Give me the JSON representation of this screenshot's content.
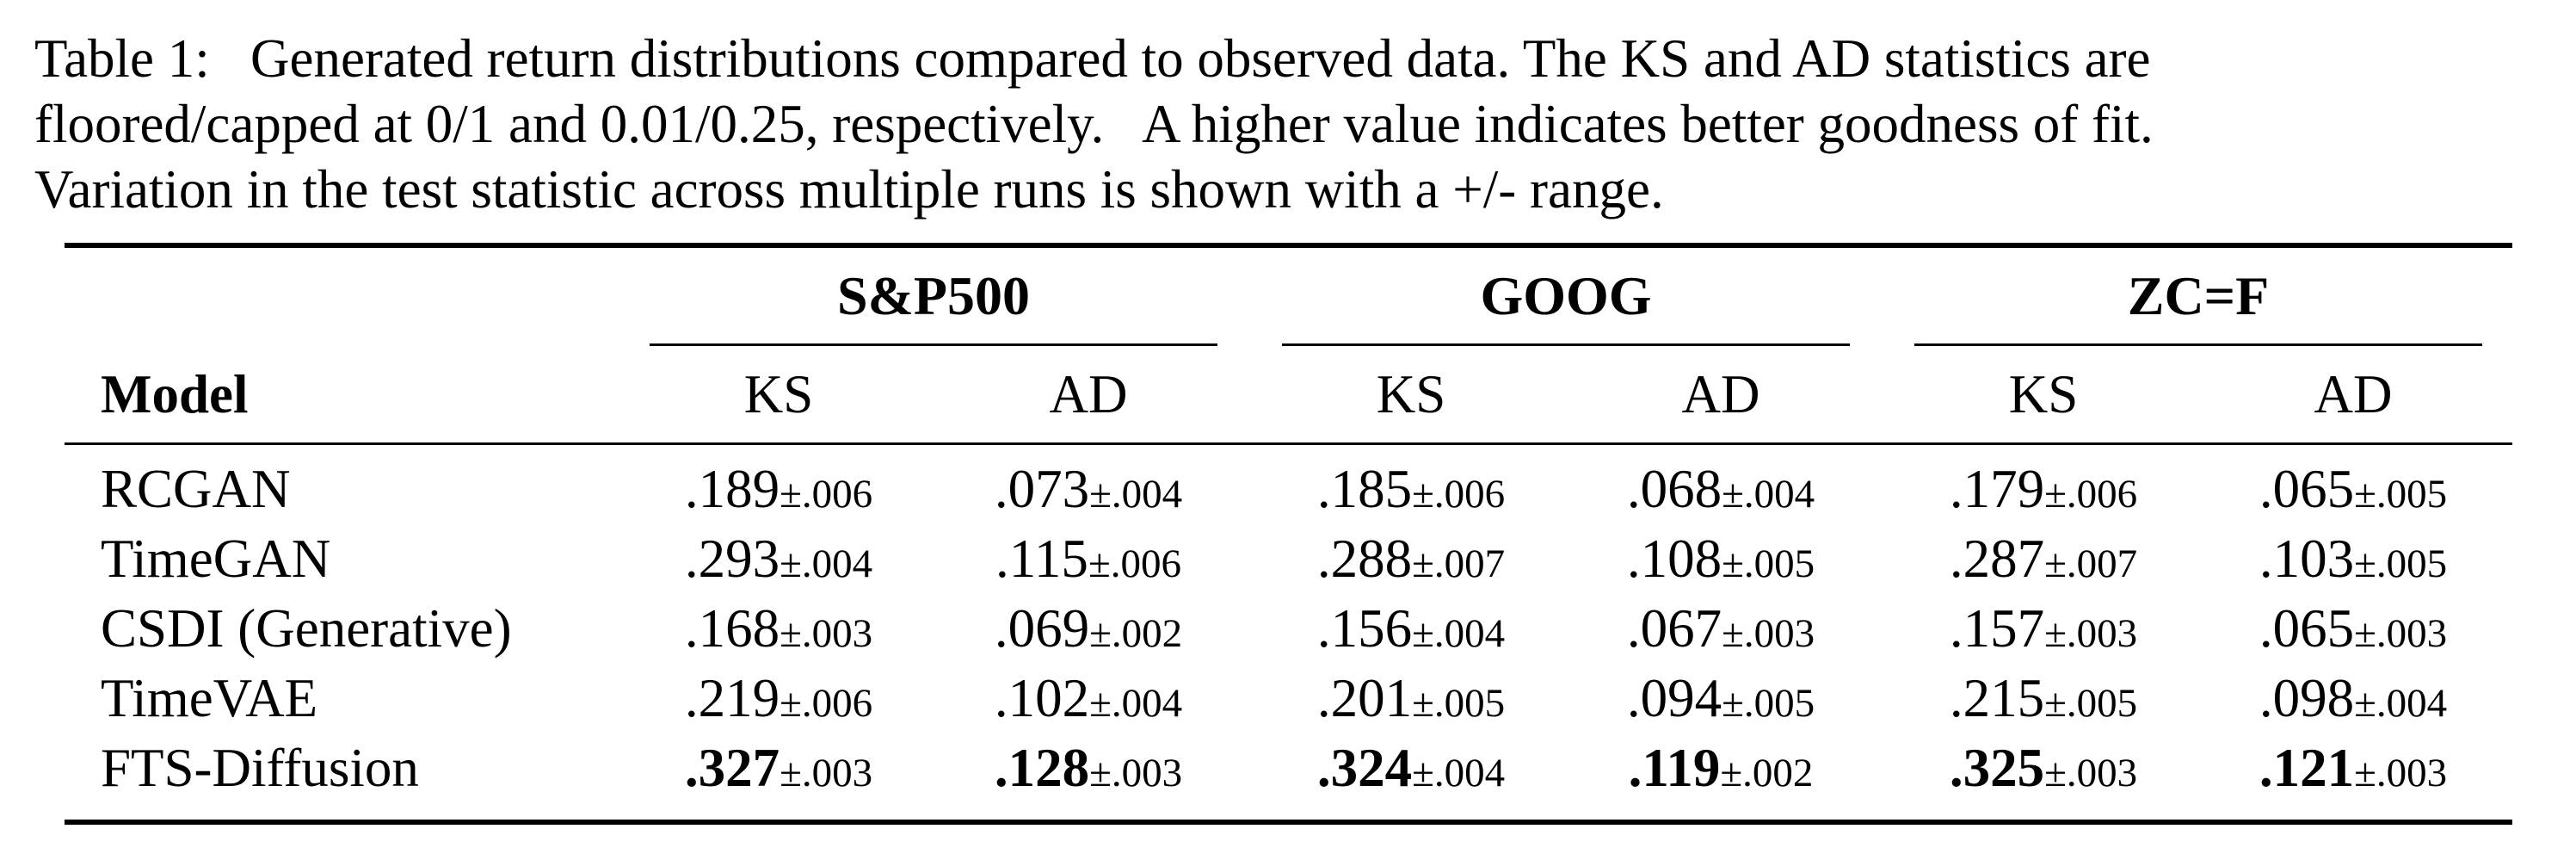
{
  "caption": {
    "lines": [
      "Table 1:  Generated return distributions compared to observed data. The KS and AD statistics are",
      "floored/capped at 0/1 and 0.01/0.25, respectively.  A higher value indicates better goodness of fit.",
      "Variation in the test statistic across multiple runs is shown with a +/- range."
    ]
  },
  "table": {
    "model_header": "Model",
    "groups": [
      "S&P500",
      "GOOG",
      "ZC=F"
    ],
    "metrics": [
      "KS",
      "AD",
      "KS",
      "AD",
      "KS",
      "AD"
    ],
    "rows": [
      {
        "model": "RCGAN",
        "cells": [
          {
            "value": ".189",
            "pm": "±.006",
            "best": false
          },
          {
            "value": ".073",
            "pm": "±.004",
            "best": false
          },
          {
            "value": ".185",
            "pm": "±.006",
            "best": false
          },
          {
            "value": ".068",
            "pm": "±.004",
            "best": false
          },
          {
            "value": ".179",
            "pm": "±.006",
            "best": false
          },
          {
            "value": ".065",
            "pm": "±.005",
            "best": false
          }
        ]
      },
      {
        "model": "TimeGAN",
        "cells": [
          {
            "value": ".293",
            "pm": "±.004",
            "best": false
          },
          {
            "value": ".115",
            "pm": "±.006",
            "best": false
          },
          {
            "value": ".288",
            "pm": "±.007",
            "best": false
          },
          {
            "value": ".108",
            "pm": "±.005",
            "best": false
          },
          {
            "value": ".287",
            "pm": "±.007",
            "best": false
          },
          {
            "value": ".103",
            "pm": "±.005",
            "best": false
          }
        ]
      },
      {
        "model": "CSDI (Generative)",
        "cells": [
          {
            "value": ".168",
            "pm": "±.003",
            "best": false
          },
          {
            "value": ".069",
            "pm": "±.002",
            "best": false
          },
          {
            "value": ".156",
            "pm": "±.004",
            "best": false
          },
          {
            "value": ".067",
            "pm": "±.003",
            "best": false
          },
          {
            "value": ".157",
            "pm": "±.003",
            "best": false
          },
          {
            "value": ".065",
            "pm": "±.003",
            "best": false
          }
        ]
      },
      {
        "model": "TimeVAE",
        "cells": [
          {
            "value": ".219",
            "pm": "±.006",
            "best": false
          },
          {
            "value": ".102",
            "pm": "±.004",
            "best": false
          },
          {
            "value": ".201",
            "pm": "±.005",
            "best": false
          },
          {
            "value": ".094",
            "pm": "±.005",
            "best": false
          },
          {
            "value": ".215",
            "pm": "±.005",
            "best": false
          },
          {
            "value": ".098",
            "pm": "±.004",
            "best": false
          }
        ]
      },
      {
        "model": "FTS-Diffusion",
        "cells": [
          {
            "value": ".327",
            "pm": "±.003",
            "best": true
          },
          {
            "value": ".128",
            "pm": "±.003",
            "best": true
          },
          {
            "value": ".324",
            "pm": "±.004",
            "best": true
          },
          {
            "value": ".119",
            "pm": "±.002",
            "best": true
          },
          {
            "value": ".325",
            "pm": "±.003",
            "best": true
          },
          {
            "value": ".121",
            "pm": "±.003",
            "best": true
          }
        ]
      }
    ]
  }
}
